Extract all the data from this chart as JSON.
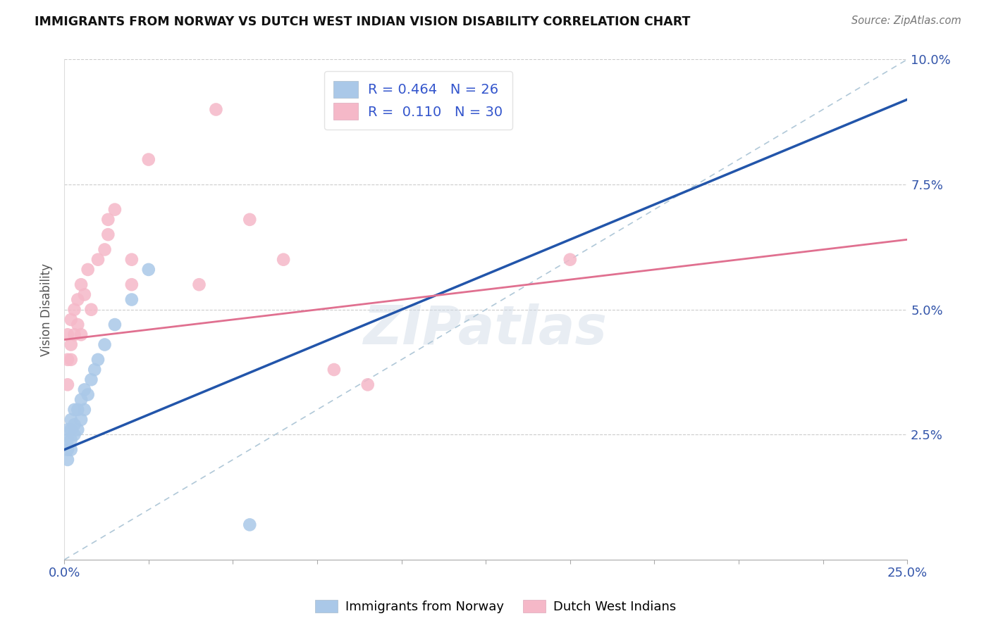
{
  "title": "IMMIGRANTS FROM NORWAY VS DUTCH WEST INDIAN VISION DISABILITY CORRELATION CHART",
  "source_text": "Source: ZipAtlas.com",
  "ylabel": "Vision Disability",
  "xlim": [
    0.0,
    0.25
  ],
  "ylim": [
    0.0,
    0.1
  ],
  "blue_color": "#aac8e8",
  "pink_color": "#f5b8c8",
  "blue_line_color": "#2255aa",
  "pink_line_color": "#e07090",
  "ref_line_color": "#b0c8d8",
  "watermark": "ZIPatlas",
  "blue_line": [
    [
      0.0,
      0.022
    ],
    [
      0.25,
      0.092
    ]
  ],
  "pink_line": [
    [
      0.0,
      0.044
    ],
    [
      0.25,
      0.064
    ]
  ],
  "norway_x": [
    0.001,
    0.001,
    0.001,
    0.001,
    0.002,
    0.002,
    0.002,
    0.002,
    0.003,
    0.003,
    0.003,
    0.004,
    0.004,
    0.005,
    0.005,
    0.006,
    0.006,
    0.007,
    0.008,
    0.009,
    0.01,
    0.012,
    0.015,
    0.02,
    0.025,
    0.055
  ],
  "norway_y": [
    0.02,
    0.022,
    0.024,
    0.026,
    0.022,
    0.024,
    0.026,
    0.028,
    0.025,
    0.027,
    0.03,
    0.026,
    0.03,
    0.028,
    0.032,
    0.03,
    0.034,
    0.033,
    0.036,
    0.038,
    0.04,
    0.043,
    0.047,
    0.052,
    0.058,
    0.007
  ],
  "dutch_x": [
    0.001,
    0.001,
    0.001,
    0.002,
    0.002,
    0.002,
    0.003,
    0.003,
    0.004,
    0.004,
    0.005,
    0.005,
    0.006,
    0.007,
    0.008,
    0.01,
    0.012,
    0.013,
    0.013,
    0.015,
    0.02,
    0.02,
    0.025,
    0.04,
    0.045,
    0.055,
    0.065,
    0.08,
    0.09,
    0.15
  ],
  "dutch_y": [
    0.035,
    0.04,
    0.045,
    0.04,
    0.043,
    0.048,
    0.045,
    0.05,
    0.047,
    0.052,
    0.045,
    0.055,
    0.053,
    0.058,
    0.05,
    0.06,
    0.062,
    0.065,
    0.068,
    0.07,
    0.055,
    0.06,
    0.08,
    0.055,
    0.09,
    0.068,
    0.06,
    0.038,
    0.035,
    0.06
  ]
}
